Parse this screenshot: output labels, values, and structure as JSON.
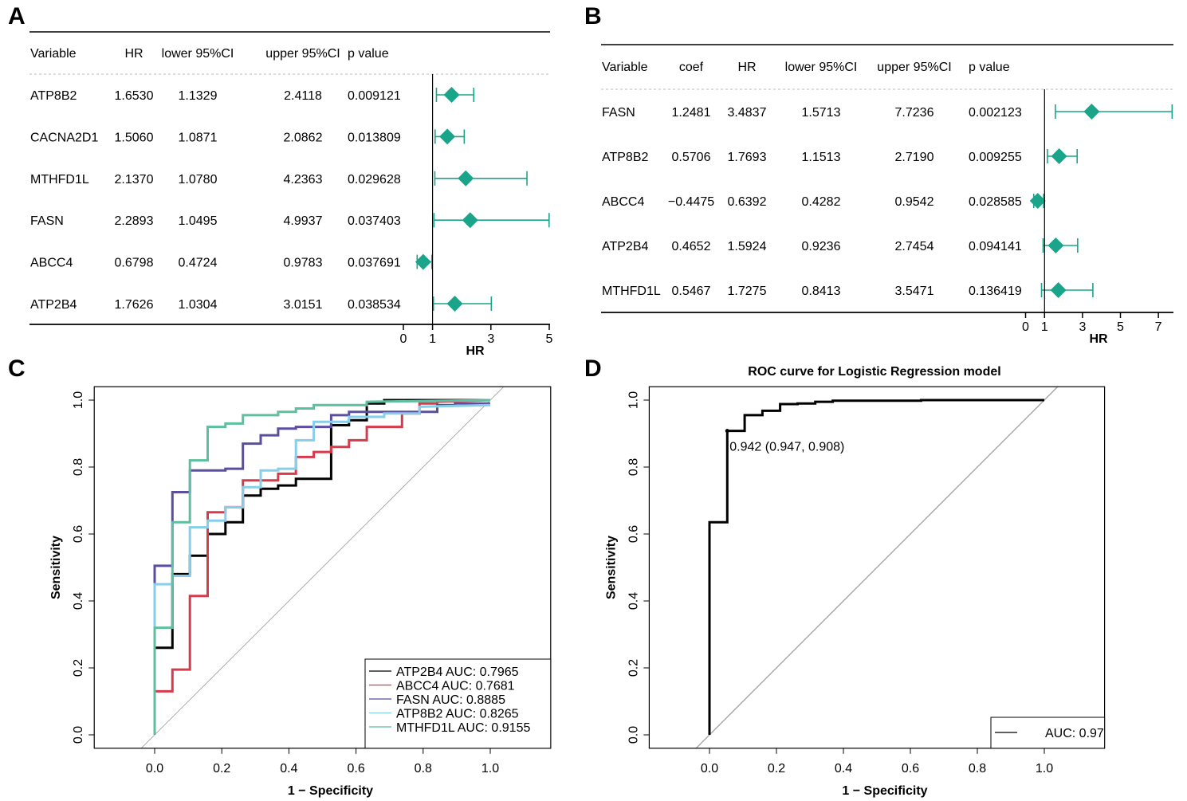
{
  "panels": {
    "A": {
      "letter": "A"
    },
    "B": {
      "letter": "B"
    },
    "C": {
      "letter": "C"
    },
    "D": {
      "letter": "D"
    }
  },
  "chart_data": [
    {
      "id": "A",
      "type": "table",
      "subtype": "forest",
      "columns": [
        "Variable",
        "HR",
        "lower 95%CI",
        "upper 95%CI",
        "p value"
      ],
      "rows": [
        {
          "variable": "ATP8B2",
          "hr": "1.6530",
          "lower": "1.1329",
          "upper": "2.4118",
          "p": "0.009121"
        },
        {
          "variable": "CACNA2D1",
          "hr": "1.5060",
          "lower": "1.0871",
          "upper": "2.0862",
          "p": "0.013809"
        },
        {
          "variable": "MTHFD1L",
          "hr": "2.1370",
          "lower": "1.0780",
          "upper": "4.2363",
          "p": "0.029628"
        },
        {
          "variable": "FASN",
          "hr": "2.2893",
          "lower": "1.0495",
          "upper": "4.9937",
          "p": "0.037403"
        },
        {
          "variable": "ABCC4",
          "hr": "0.6798",
          "lower": "0.4724",
          "upper": "0.9783",
          "p": "0.037691"
        },
        {
          "variable": "ATP2B4",
          "hr": "1.7626",
          "lower": "1.0304",
          "upper": "3.0151",
          "p": "0.038534"
        }
      ],
      "xlabel": "HR",
      "xticks": [
        "0",
        "1",
        "3",
        "5"
      ],
      "xlim": [
        0,
        5
      ],
      "ref_line": 1,
      "marker_color": "#1aa58a"
    },
    {
      "id": "B",
      "type": "table",
      "subtype": "forest",
      "columns": [
        "Variable",
        "coef",
        "HR",
        "lower 95%CI",
        "upper 95%CI",
        "p value"
      ],
      "rows": [
        {
          "variable": "FASN",
          "coef": "1.2481",
          "hr": "3.4837",
          "lower": "1.5713",
          "upper": "7.7236",
          "p": "0.002123"
        },
        {
          "variable": "ATP8B2",
          "coef": "0.5706",
          "hr": "1.7693",
          "lower": "1.1513",
          "upper": "2.7190",
          "p": "0.009255"
        },
        {
          "variable": "ABCC4",
          "coef": "−0.4475",
          "hr": "0.6392",
          "lower": "0.4282",
          "upper": "0.9542",
          "p": "0.028585"
        },
        {
          "variable": "ATP2B4",
          "coef": "0.4652",
          "hr": "1.5924",
          "lower": "0.9236",
          "upper": "2.7454",
          "p": "0.094141"
        },
        {
          "variable": "MTHFD1L",
          "coef": "0.5467",
          "hr": "1.7275",
          "lower": "0.8413",
          "upper": "3.5471",
          "p": "0.136419"
        }
      ],
      "xlabel": "HR",
      "xticks": [
        "0",
        "1",
        "3",
        "5",
        "7"
      ],
      "xlim": [
        0,
        7.72
      ],
      "ref_line": 1,
      "marker_color": "#1aa58a"
    },
    {
      "id": "C",
      "type": "line",
      "title": "",
      "xlabel": "1 − Specificity",
      "ylabel": "Sensitivity",
      "xlim": [
        -0.18,
        1.18
      ],
      "ylim": [
        -0.04,
        1.04
      ],
      "xticks": [
        "0.0",
        "0.2",
        "0.4",
        "0.6",
        "0.8",
        "1.0"
      ],
      "yticks": [
        "0.0",
        "0.2",
        "0.4",
        "0.6",
        "0.8",
        "1.0"
      ],
      "legend_position": "bottom-right",
      "diagonal": true,
      "series": [
        {
          "name": "ATP2B4 AUC: 0.7965",
          "color": "#000000",
          "x": [
            0,
            0,
            0.053,
            0.053,
            0.105,
            0.105,
            0.158,
            0.158,
            0.211,
            0.211,
            0.263,
            0.263,
            0.316,
            0.316,
            0.368,
            0.368,
            0.421,
            0.421,
            0.526,
            0.526,
            0.579,
            0.579,
            0.632,
            0.632,
            0.684,
            0.684,
            0.947,
            1
          ],
          "y": [
            0,
            0.26,
            0.26,
            0.48,
            0.48,
            0.535,
            0.535,
            0.6,
            0.6,
            0.635,
            0.635,
            0.715,
            0.715,
            0.735,
            0.735,
            0.745,
            0.745,
            0.765,
            0.765,
            0.925,
            0.925,
            0.94,
            0.94,
            0.99,
            0.99,
            1.0,
            1.0,
            1.0
          ]
        },
        {
          "name": "ABCC4 AUC: 0.7681",
          "color": "#d63b4c",
          "x": [
            0,
            0,
            0.053,
            0.053,
            0.105,
            0.105,
            0.158,
            0.158,
            0.211,
            0.211,
            0.263,
            0.263,
            0.368,
            0.368,
            0.421,
            0.421,
            0.474,
            0.474,
            0.526,
            0.526,
            0.579,
            0.579,
            0.632,
            0.632,
            0.737,
            0.737,
            0.789,
            0.789,
            0.842,
            0.842,
            1
          ],
          "y": [
            0,
            0.13,
            0.13,
            0.195,
            0.195,
            0.415,
            0.415,
            0.665,
            0.665,
            0.68,
            0.68,
            0.76,
            0.76,
            0.78,
            0.78,
            0.83,
            0.83,
            0.845,
            0.845,
            0.86,
            0.86,
            0.88,
            0.88,
            0.92,
            0.92,
            0.96,
            0.96,
            0.99,
            0.99,
            0.995,
            1.0
          ]
        },
        {
          "name": "FASN AUC: 0.8885",
          "color": "#5a4ea0",
          "x": [
            0,
            0,
            0.053,
            0.053,
            0.105,
            0.105,
            0.211,
            0.211,
            0.263,
            0.263,
            0.316,
            0.316,
            0.368,
            0.368,
            0.421,
            0.421,
            0.526,
            0.526,
            0.579,
            0.579,
            0.842,
            0.842,
            0.895,
            0.895,
            1
          ],
          "y": [
            0,
            0.505,
            0.505,
            0.725,
            0.725,
            0.79,
            0.79,
            0.795,
            0.795,
            0.87,
            0.87,
            0.895,
            0.895,
            0.915,
            0.915,
            0.92,
            0.92,
            0.955,
            0.955,
            0.965,
            0.965,
            0.985,
            0.985,
            0.99,
            0.99
          ]
        },
        {
          "name": "ATP8B2 AUC: 0.8265",
          "color": "#87ceea",
          "x": [
            0,
            0,
            0.053,
            0.053,
            0.105,
            0.105,
            0.158,
            0.158,
            0.211,
            0.211,
            0.263,
            0.263,
            0.316,
            0.316,
            0.368,
            0.368,
            0.421,
            0.421,
            0.474,
            0.474,
            0.579,
            0.579,
            0.684,
            0.684,
            0.789,
            0.789,
            1
          ],
          "y": [
            0,
            0.45,
            0.45,
            0.475,
            0.475,
            0.62,
            0.62,
            0.64,
            0.64,
            0.68,
            0.68,
            0.74,
            0.74,
            0.79,
            0.79,
            0.795,
            0.795,
            0.88,
            0.88,
            0.935,
            0.935,
            0.95,
            0.95,
            0.96,
            0.96,
            0.98,
            0.985
          ]
        },
        {
          "name": "MTHFD1L AUC: 0.9155",
          "color": "#5dbf9f",
          "x": [
            0,
            0,
            0.053,
            0.053,
            0.105,
            0.105,
            0.158,
            0.158,
            0.211,
            0.211,
            0.263,
            0.263,
            0.368,
            0.368,
            0.421,
            0.421,
            0.474,
            0.474,
            0.632,
            0.632,
            1
          ],
          "y": [
            0,
            0.32,
            0.32,
            0.635,
            0.635,
            0.82,
            0.82,
            0.92,
            0.92,
            0.93,
            0.93,
            0.955,
            0.955,
            0.965,
            0.965,
            0.975,
            0.975,
            0.985,
            0.985,
            0.995,
            1.0
          ]
        }
      ]
    },
    {
      "id": "D",
      "type": "line",
      "title": "ROC curve for Logistic Regression model",
      "xlabel": "1 − Specificity",
      "ylabel": "Sensitivity",
      "xlim": [
        -0.18,
        1.18
      ],
      "ylim": [
        -0.04,
        1.04
      ],
      "xticks": [
        "0.0",
        "0.2",
        "0.4",
        "0.6",
        "0.8",
        "1.0"
      ],
      "yticks": [
        "0.0",
        "0.2",
        "0.4",
        "0.6",
        "0.8",
        "1.0"
      ],
      "legend_position": "bottom-right",
      "diagonal": true,
      "annotation": {
        "text": "0.942 (0.947, 0.908)",
        "x": 0.053,
        "y": 0.908
      },
      "series": [
        {
          "name": "AUC: 0.97",
          "color": "#000000",
          "x": [
            0,
            0,
            0.053,
            0.053,
            0.105,
            0.105,
            0.158,
            0.158,
            0.211,
            0.211,
            0.263,
            0.263,
            0.316,
            0.316,
            0.368,
            0.368,
            0.632,
            0.632,
            1
          ],
          "y": [
            0,
            0.635,
            0.635,
            0.908,
            0.908,
            0.955,
            0.955,
            0.968,
            0.968,
            0.988,
            0.988,
            0.99,
            0.99,
            0.995,
            0.995,
            0.998,
            0.998,
            1.0,
            1.0
          ]
        }
      ]
    }
  ]
}
